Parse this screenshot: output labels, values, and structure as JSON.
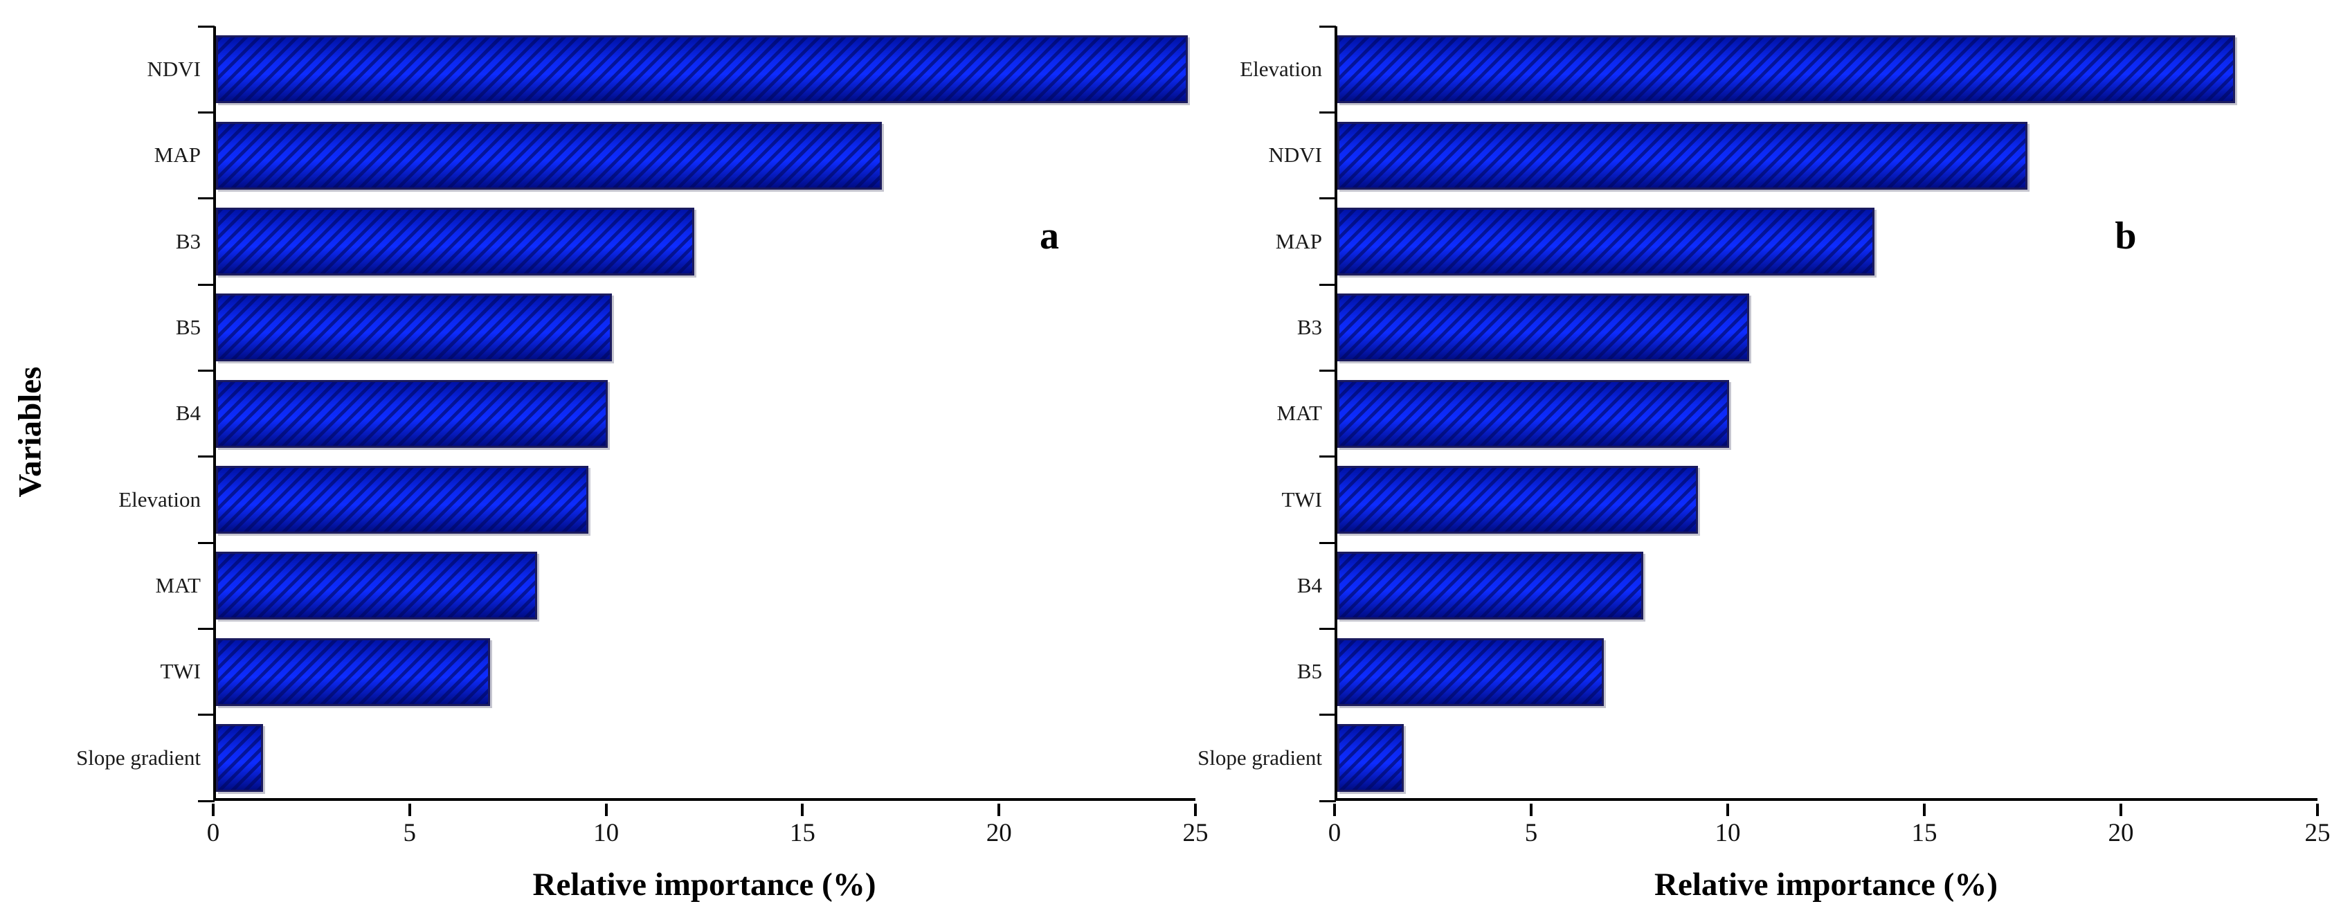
{
  "figure": {
    "y_axis_title": "Variables",
    "colors": {
      "bar_fill": "#0d2cff",
      "bar_fill_shade": "#000c84",
      "bar_hatch": "#00065c",
      "bar_border": "#1b1b5e",
      "axis": "#000000",
      "background": "#ffffff"
    }
  },
  "chart_data": [
    {
      "type": "bar",
      "orientation": "horizontal",
      "panel_label": "a",
      "xlabel": "Relative importance (%)",
      "ylabel": "Variables",
      "xlim": [
        0,
        25
      ],
      "x_ticks": [
        "0",
        "5",
        "10",
        "15",
        "20",
        "25"
      ],
      "grid": false,
      "categories": [
        "NDVI",
        "MAP",
        "B3",
        "B5",
        "B4",
        "Elevation",
        "MAT",
        "TWI",
        "Slope gradient"
      ],
      "values": [
        24.8,
        17.0,
        12.2,
        10.1,
        10.0,
        9.5,
        8.2,
        7.0,
        1.2
      ]
    },
    {
      "type": "bar",
      "orientation": "horizontal",
      "panel_label": "b",
      "xlabel": "Relative importance (%)",
      "ylabel": "",
      "xlim": [
        0,
        25
      ],
      "x_ticks": [
        "0",
        "5",
        "10",
        "15",
        "20",
        "25"
      ],
      "grid": false,
      "categories": [
        "Elevation",
        "NDVI",
        "MAP",
        "B3",
        "MAT",
        "TWI",
        "B4",
        "B5",
        "Slope gradient"
      ],
      "values": [
        22.9,
        17.6,
        13.7,
        10.5,
        10.0,
        9.2,
        7.8,
        6.8,
        1.7
      ]
    }
  ]
}
